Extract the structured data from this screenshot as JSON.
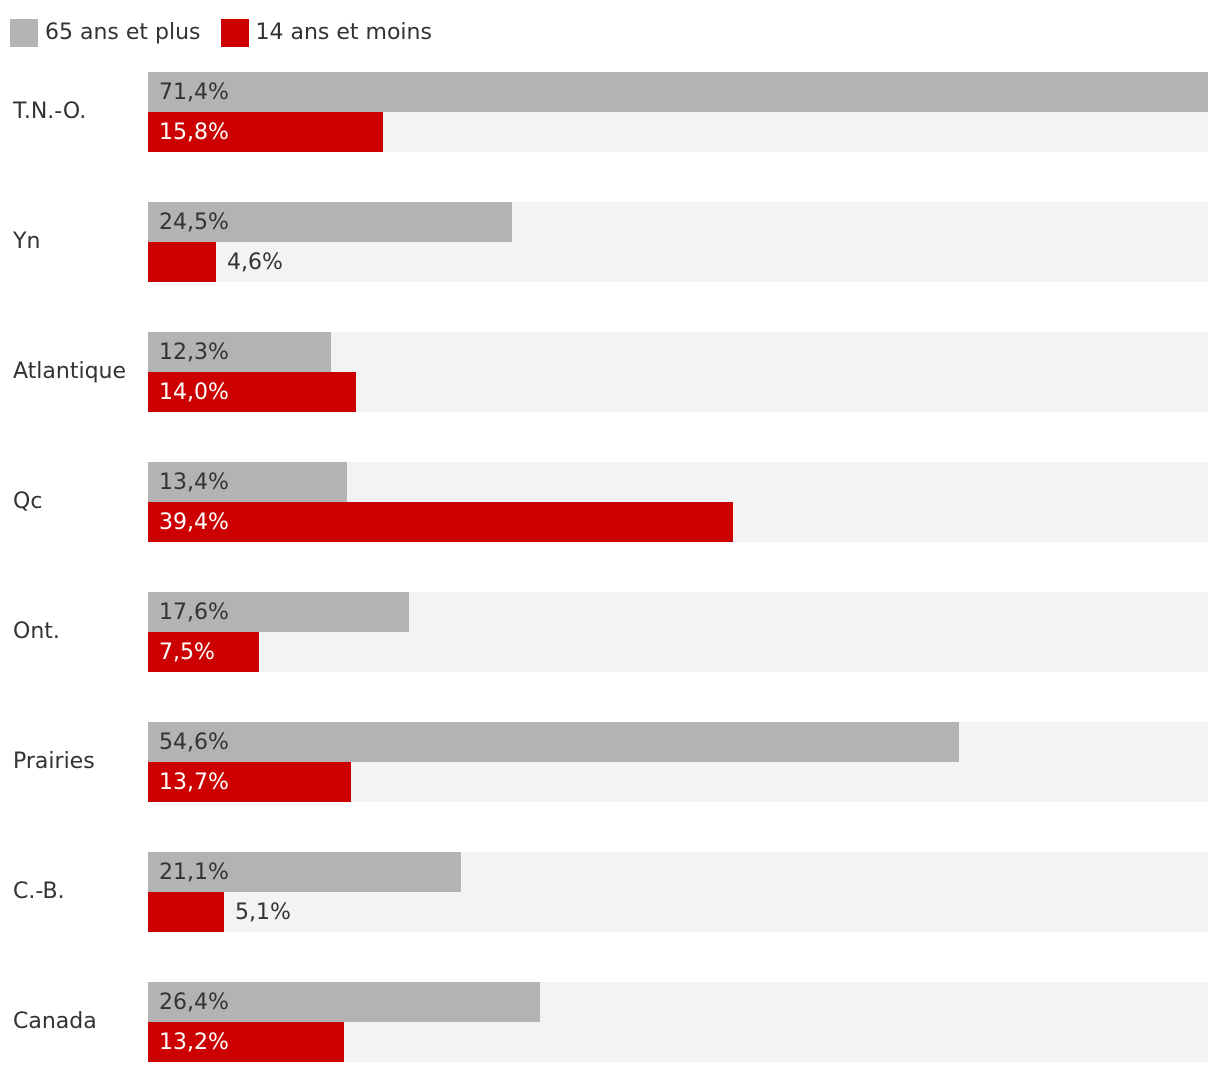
{
  "legend": {
    "senior_label": "65 ans et plus",
    "youth_label": "14 ans et moins"
  },
  "colors": {
    "senior": "#b3b3b3",
    "youth": "#cc0000",
    "track": "#f3f3f3",
    "text_dark": "#333333",
    "text_light": "#ffffff"
  },
  "chart_data": {
    "type": "bar",
    "orientation": "horizontal",
    "title": "",
    "xlabel": "",
    "ylabel": "",
    "xlim": [
      0,
      71.4
    ],
    "grid": false,
    "legend_position": "top-left",
    "categories": [
      "T.N.-O.",
      "Yn",
      "Atlantique",
      "Qc",
      "Ont.",
      "Prairies",
      "C.-B.",
      "Canada"
    ],
    "series": [
      {
        "name": "65 ans et plus",
        "color": "#b3b3b3",
        "values": [
          71.4,
          24.5,
          12.3,
          13.4,
          17.6,
          54.6,
          21.1,
          26.4
        ],
        "labels": [
          "71,4%",
          "24,5%",
          "12,3%",
          "13,4%",
          "17,6%",
          "54,6%",
          "21,1%",
          "26,4%"
        ]
      },
      {
        "name": "14 ans et moins",
        "color": "#cc0000",
        "values": [
          15.8,
          4.6,
          14.0,
          39.4,
          7.5,
          13.7,
          5.1,
          13.2
        ],
        "labels": [
          "15,8%",
          "4,6%",
          "14,0%",
          "39,4%",
          "7,5%",
          "13,7%",
          "5,1%",
          "13,2%"
        ]
      }
    ]
  }
}
